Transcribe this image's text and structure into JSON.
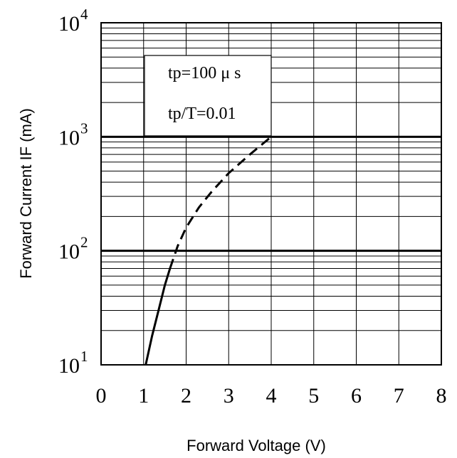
{
  "chart_data": {
    "type": "line",
    "xlabel": "Forward Voltage (V)",
    "ylabel": "Forward Current IF (mA)",
    "xlim": [
      0,
      8
    ],
    "ylim": [
      10,
      10000
    ],
    "yscale": "log",
    "grid": true,
    "x_ticks": [
      "0",
      "1",
      "2",
      "3",
      "4",
      "5",
      "6",
      "7",
      "8"
    ],
    "y_ticks": [
      {
        "base": "10",
        "exp": "1"
      },
      {
        "base": "10",
        "exp": "2"
      },
      {
        "base": "10",
        "exp": "3"
      },
      {
        "base": "10",
        "exp": "4"
      }
    ],
    "annotations": [
      "tp=100 μ s",
      "tp/T=0.01"
    ],
    "series": [
      {
        "style": "solid",
        "color": "#000000",
        "points": [
          [
            1.05,
            10
          ],
          [
            1.2,
            18
          ],
          [
            1.35,
            30
          ],
          [
            1.5,
            50
          ],
          [
            1.62,
            70
          ]
        ]
      },
      {
        "style": "dashed",
        "color": "#000000",
        "points": [
          [
            1.62,
            70
          ],
          [
            1.8,
            110
          ],
          [
            2.0,
            160
          ],
          [
            2.3,
            240
          ],
          [
            2.6,
            330
          ],
          [
            3.0,
            480
          ],
          [
            3.5,
            700
          ],
          [
            4.0,
            1000
          ]
        ]
      }
    ]
  }
}
